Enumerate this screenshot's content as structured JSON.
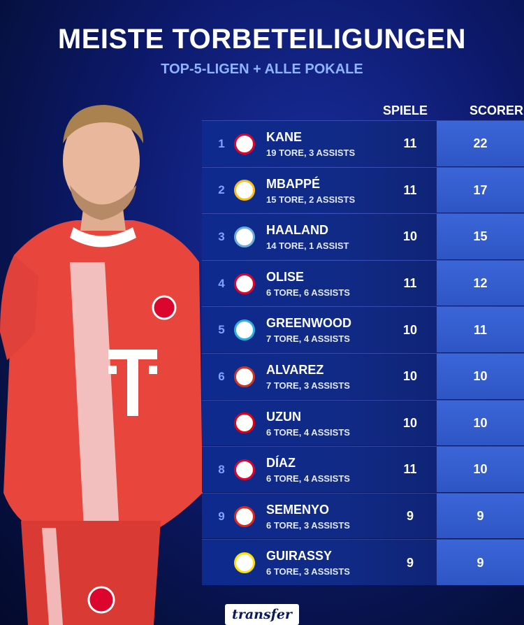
{
  "header": {
    "title": "MEISTE TORBETEILIGUNGEN",
    "subtitle": "TOP-5-LIGEN + ALLE POKALE"
  },
  "columns": {
    "spiele": "SPIELE",
    "scorer": "SCORER"
  },
  "rows": [
    {
      "rank": "1",
      "name": "KANE",
      "stats": "19 TORE, 3 ASSISTS",
      "spiele": "11",
      "scorer": "22",
      "club_icon": "bayern-icon",
      "club_color": "#dc052d"
    },
    {
      "rank": "2",
      "name": "MBAPPÉ",
      "stats": "15 TORE, 2 ASSISTS",
      "spiele": "11",
      "scorer": "17",
      "club_icon": "real-madrid-icon",
      "club_color": "#febe10"
    },
    {
      "rank": "3",
      "name": "HAALAND",
      "stats": "14 TORE, 1 ASSIST",
      "spiele": "10",
      "scorer": "15",
      "club_icon": "man-city-icon",
      "club_color": "#6cabdd"
    },
    {
      "rank": "4",
      "name": "OLISE",
      "stats": "6 TORE, 6 ASSISTS",
      "spiele": "11",
      "scorer": "12",
      "club_icon": "bayern-icon",
      "club_color": "#dc052d"
    },
    {
      "rank": "5",
      "name": "GREENWOOD",
      "stats": "7 TORE, 4 ASSISTS",
      "spiele": "10",
      "scorer": "11",
      "club_icon": "marseille-icon",
      "club_color": "#2faee0"
    },
    {
      "rank": "6",
      "name": "ALVAREZ",
      "stats": "7 TORE, 3 ASSISTS",
      "spiele": "10",
      "scorer": "10",
      "club_icon": "atletico-icon",
      "club_color": "#cb3524"
    },
    {
      "rank": "",
      "name": "UZUN",
      "stats": "6 TORE, 4 ASSISTS",
      "spiele": "10",
      "scorer": "10",
      "club_icon": "frankfurt-icon",
      "club_color": "#e1000f"
    },
    {
      "rank": "8",
      "name": "DÍAZ",
      "stats": "6 TORE, 4 ASSISTS",
      "spiele": "11",
      "scorer": "10",
      "club_icon": "bayern-icon",
      "club_color": "#dc052d"
    },
    {
      "rank": "9",
      "name": "SEMENYO",
      "stats": "6 TORE, 3 ASSISTS",
      "spiele": "9",
      "scorer": "9",
      "club_icon": "bournemouth-icon",
      "club_color": "#da291c"
    },
    {
      "rank": "",
      "name": "GUIRASSY",
      "stats": "6 TORE, 3 ASSISTS",
      "spiele": "9",
      "scorer": "9",
      "club_icon": "dortmund-icon",
      "club_color": "#fde100"
    }
  ],
  "brand": {
    "logo_text": "transfer",
    "accent": "#3b66d8",
    "background": "#0d1a6e"
  }
}
